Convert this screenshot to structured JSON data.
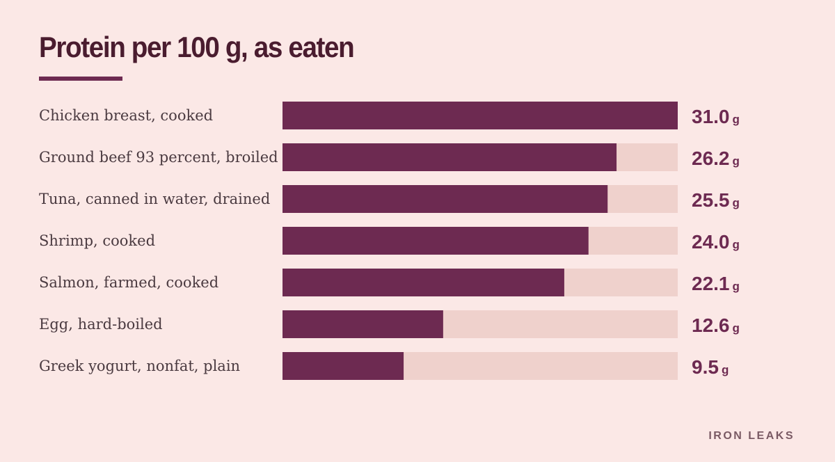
{
  "brand": "IRON LEAKS",
  "colors": {
    "background": "#fbe8e6",
    "bar": "#6d2a51",
    "track": "#efd1cc",
    "title": "#4a1c2f",
    "label": "#4a3a40",
    "brand": "#7a5a64"
  },
  "chart_data": {
    "type": "bar",
    "orientation": "horizontal",
    "title": "Protein per 100 g, as eaten",
    "unit": "g",
    "xlim": [
      0,
      31.0
    ],
    "grid": false,
    "legend": "none",
    "categories": [
      "Chicken breast, cooked",
      "Ground beef 93 percent, broiled",
      "Tuna, canned in water, drained",
      "Shrimp, cooked",
      "Salmon, farmed, cooked",
      "Egg, hard-boiled",
      "Greek yogurt, nonfat, plain"
    ],
    "values": [
      31.0,
      26.2,
      25.5,
      24.0,
      22.1,
      12.6,
      9.5
    ],
    "value_labels": [
      "31.0",
      "26.2",
      "25.5",
      "24.0",
      "22.1",
      "12.6",
      "9.5"
    ]
  }
}
